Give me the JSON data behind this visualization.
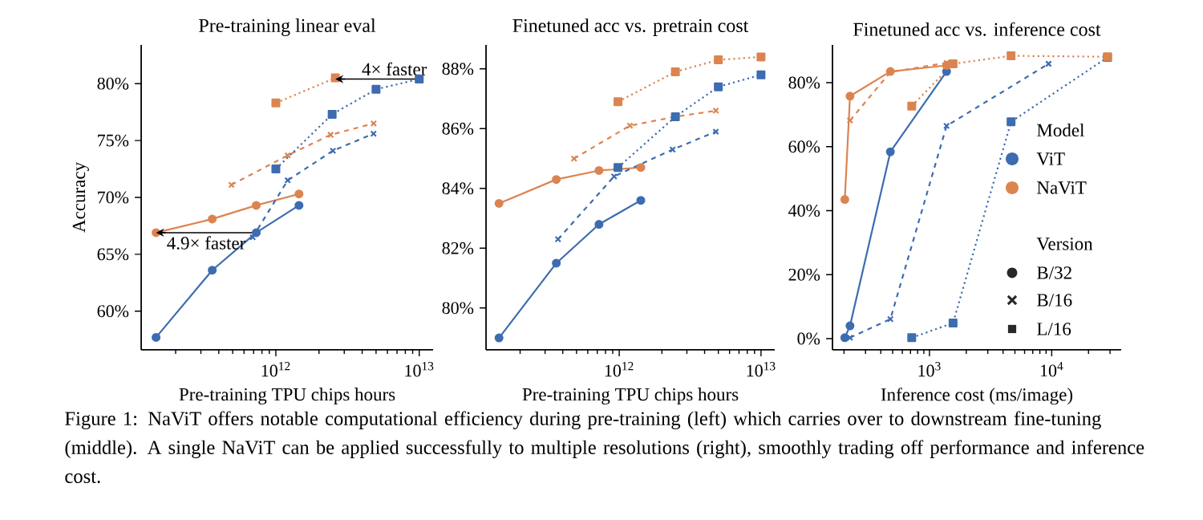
{
  "chart_data": [
    {
      "type": "line",
      "title": "Pre-training linear eval",
      "xlabel": "Pre-training TPU chips hours",
      "ylabel": "Accuracy",
      "log": "x",
      "xlim": [
        115000000000.0,
        12500000000000.0
      ],
      "xticks": [
        {
          "value": 1000000000000.0,
          "label": "10$^{12}$"
        },
        {
          "value": 10000000000000.0,
          "label": "10$^{13}$"
        }
      ],
      "ylim": [
        56.6,
        83.4
      ],
      "yticks": [
        {
          "value": 60,
          "label": "60%"
        },
        {
          "value": 65,
          "label": "65%"
        },
        {
          "value": 70,
          "label": "70%"
        },
        {
          "value": 75,
          "label": "75%"
        },
        {
          "value": 80,
          "label": "80%"
        }
      ],
      "series": [
        {
          "color": "#3d6cb0",
          "marker": "circle",
          "line_style": "solid",
          "x": [
            146000000000.0,
            360000000000.0,
            730000000000.0,
            1450000000000.0
          ],
          "values": [
            57.7,
            63.6,
            66.9,
            69.3
          ]
        },
        {
          "color": "#dc8450",
          "marker": "circle",
          "line_style": "solid",
          "x": [
            146000000000.0,
            360000000000.0,
            730000000000.0,
            1450000000000.0
          ],
          "values": [
            66.9,
            68.1,
            69.3,
            70.3
          ]
        },
        {
          "color": "#3d6cb0",
          "marker": "cross",
          "line_style": "dashed",
          "x": [
            690000000000.0,
            1210000000000.0,
            2500000000000.0,
            4800000000000.0
          ],
          "values": [
            66.5,
            71.5,
            74.1,
            75.6
          ]
        },
        {
          "color": "#dc8450",
          "marker": "cross",
          "line_style": "dashed",
          "x": [
            490000000000.0,
            1210000000000.0,
            2410000000000.0,
            4810000000000.0
          ],
          "values": [
            71.1,
            73.7,
            75.5,
            76.5
          ]
        },
        {
          "color": "#3d6cb0",
          "marker": "square",
          "line_style": "dotted",
          "x": [
            1000000000000.0,
            2470000000000.0,
            5000000000000.0,
            10000000000000.0
          ],
          "values": [
            72.5,
            77.3,
            79.5,
            80.4
          ]
        },
        {
          "color": "#dc8450",
          "marker": "square",
          "line_style": "dotted",
          "x": [
            1000000000000.0,
            2600000000000.0
          ],
          "values": [
            78.3,
            80.5
          ]
        },
        {
          "color": "#000000",
          "marker": "none",
          "line_style": "solid",
          "x": [
            10000000000000.0,
            2600000000000.0
          ],
          "values": [
            80.4,
            80.4
          ]
        },
        {
          "color": "#000000",
          "marker": "none",
          "line_style": "solid",
          "x": [
            730000000000.0,
            146000000000.0
          ],
          "values": [
            66.9,
            66.9
          ]
        }
      ],
      "annotations": [
        "4× faster",
        "4.9× faster",
        "Figure 1: NaViT offers notable computational efficiency during pre-training (left) which carries over to downstream fine-tuning (middle). A single NaViT can be applied successfully to multiple resolutions (right), smoothly trading off performance and inference cost."
      ]
    },
    {
      "type": "line",
      "title": "Finetuned acc vs. pretrain cost",
      "xlabel": "Pre-training TPU chips hours",
      "log": "x",
      "xlim": [
        115000000000.0,
        12500000000000.0
      ],
      "xticks": [
        {
          "value": 1000000000000.0,
          "label": "10$^{12}$"
        },
        {
          "value": 10000000000000.0,
          "label": "10$^{13}$"
        }
      ],
      "ylim": [
        78.6,
        88.8
      ],
      "yticks": [
        {
          "value": 80,
          "label": "80%"
        },
        {
          "value": 82,
          "label": "82%"
        },
        {
          "value": 84,
          "label": "84%"
        },
        {
          "value": 86,
          "label": "86%"
        },
        {
          "value": 88,
          "label": "88%"
        }
      ],
      "series": [
        {
          "color": "#3d6cb0",
          "marker": "circle",
          "line_style": "solid",
          "x": [
            142000000000.0,
            360000000000.0,
            720000000000.0,
            1420000000000.0
          ],
          "values": [
            79.0,
            81.5,
            82.8,
            83.6
          ]
        },
        {
          "color": "#dc8450",
          "marker": "circle",
          "line_style": "solid",
          "x": [
            142000000000.0,
            360000000000.0,
            720000000000.0,
            1420000000000.0
          ],
          "values": [
            83.5,
            84.3,
            84.6,
            84.7
          ]
        },
        {
          "color": "#3d6cb0",
          "marker": "cross",
          "line_style": "dashed",
          "x": [
            370000000000.0,
            920000000000.0,
            2380000000000.0,
            4800000000000.0
          ],
          "values": [
            82.3,
            84.4,
            85.3,
            85.9
          ]
        },
        {
          "color": "#dc8450",
          "marker": "cross",
          "line_style": "dashed",
          "x": [
            480000000000.0,
            1190000000000.0,
            2490000000000.0,
            4800000000000.0
          ],
          "values": [
            85.0,
            86.1,
            86.4,
            86.6
          ]
        },
        {
          "color": "#3d6cb0",
          "marker": "square",
          "line_style": "dotted",
          "x": [
            980000000000.0,
            2490000000000.0,
            5000000000000.0,
            10000000000000.0
          ],
          "values": [
            84.7,
            86.4,
            87.4,
            87.8
          ]
        },
        {
          "color": "#dc8450",
          "marker": "square",
          "line_style": "dotted",
          "x": [
            980000000000.0,
            2490000000000.0,
            5000000000000.0,
            10000000000000.0
          ],
          "values": [
            86.9,
            87.9,
            88.3,
            88.4
          ]
        }
      ]
    },
    {
      "type": "line",
      "title": "Finetuned acc vs. inference cost",
      "xlabel": "Inference cost (ms/image)",
      "log": "x",
      "xlim": [
        161,
        37000
      ],
      "xticks": [
        {
          "value": 1000,
          "label": "10$^{3}$"
        },
        {
          "value": 10000,
          "label": "10$^{4}$"
        }
      ],
      "ylim": [
        -3.5,
        91.8
      ],
      "yticks": [
        {
          "value": 0,
          "label": "0%"
        },
        {
          "value": 20,
          "label": "20%"
        },
        {
          "value": 40,
          "label": "40%"
        },
        {
          "value": 60,
          "label": "60%"
        },
        {
          "value": 80,
          "label": "80%"
        }
      ],
      "series": [
        {
          "color": "#3d6cb0",
          "marker": "circle",
          "line_style": "solid",
          "x": [
            203,
            224,
            479,
            1380
          ],
          "values": [
            0.3,
            4,
            58.4,
            83.5
          ]
        },
        {
          "color": "#dc8450",
          "marker": "circle",
          "line_style": "solid",
          "x": [
            203,
            224,
            479,
            1380
          ],
          "values": [
            43.5,
            75.8,
            83.5,
            85.4
          ]
        },
        {
          "color": "#3d6cb0",
          "marker": "cross",
          "line_style": "dashed",
          "x": [
            224,
            479,
            1380,
            9420
          ],
          "values": [
            0.3,
            6.1,
            66.5,
            85.9
          ]
        },
        {
          "color": "#dc8450",
          "marker": "cross",
          "line_style": "dashed",
          "x": [
            224,
            479,
            1380
          ],
          "values": [
            68.2,
            83.3,
            86.2
          ]
        },
        {
          "color": "#3d6cb0",
          "marker": "square",
          "line_style": "dotted",
          "x": [
            716,
            1560,
            4650,
            28600
          ],
          "values": [
            0.3,
            4.9,
            67.8,
            87.9
          ]
        },
        {
          "color": "#dc8450",
          "marker": "square",
          "line_style": "dotted",
          "x": [
            716,
            1560,
            4650,
            28600
          ],
          "values": [
            72.7,
            85.9,
            88.4,
            88.1
          ]
        }
      ],
      "annotations": [
        "Model",
        "ViT",
        "NaViT",
        "Version",
        "B/32",
        "B/16",
        "L/16"
      ]
    }
  ]
}
